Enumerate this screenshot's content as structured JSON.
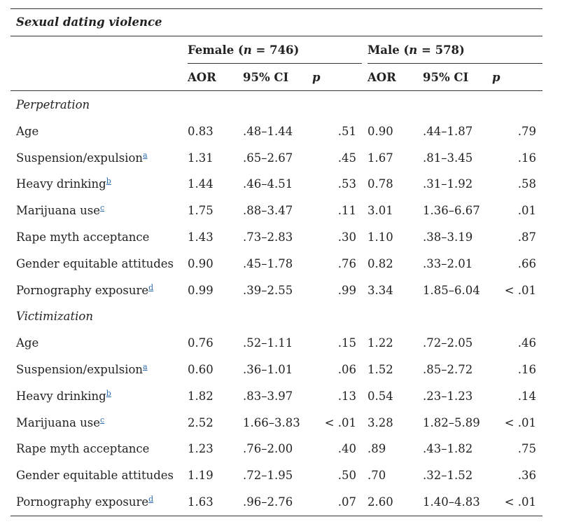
{
  "table": {
    "title": "Sexual dating violence",
    "groups": {
      "female": {
        "label": "Female (",
        "n_symbol": "n",
        "n_text": " = 746)"
      },
      "male": {
        "label": "Male (",
        "n_symbol": "n",
        "n_text": " = 578)"
      }
    },
    "columns": {
      "aor": "AOR",
      "ci": "95% CI",
      "p": "p"
    },
    "sections": [
      {
        "label": "Perpetration",
        "rows": [
          {
            "name": "Age",
            "fn": "",
            "f_aor": "0.83",
            "f_ci": ".48–1.44",
            "f_p": ".51",
            "m_aor": "0.90",
            "m_ci": ".44–1.87",
            "m_p": ".79"
          },
          {
            "name": "Suspension/expulsion",
            "fn": "a",
            "f_aor": "1.31",
            "f_ci": ".65–2.67",
            "f_p": ".45",
            "m_aor": "1.67",
            "m_ci": ".81–3.45",
            "m_p": ".16"
          },
          {
            "name": "Heavy drinking",
            "fn": "b",
            "f_aor": "1.44",
            "f_ci": ".46–4.51",
            "f_p": ".53",
            "m_aor": "0.78",
            "m_ci": ".31–1.92",
            "m_p": ".58"
          },
          {
            "name": "Marijuana use",
            "fn": "c",
            "f_aor": "1.75",
            "f_ci": ".88–3.47",
            "f_p": ".11",
            "m_aor": "3.01",
            "m_ci": "1.36–6.67",
            "m_p": ".01"
          },
          {
            "name": "Rape myth acceptance",
            "fn": "",
            "f_aor": "1.43",
            "f_ci": ".73–2.83",
            "f_p": ".30",
            "m_aor": "1.10",
            "m_ci": ".38–3.19",
            "m_p": ".87"
          },
          {
            "name": "Gender equitable attitudes",
            "fn": "",
            "f_aor": "0.90",
            "f_ci": ".45–1.78",
            "f_p": ".76",
            "m_aor": "0.82",
            "m_ci": ".33–2.01",
            "m_p": ".66"
          },
          {
            "name": "Pornography exposure",
            "fn": "d",
            "f_aor": "0.99",
            "f_ci": ".39–2.55",
            "f_p": ".99",
            "m_aor": "3.34",
            "m_ci": "1.85–6.04",
            "m_p": "< .01"
          }
        ]
      },
      {
        "label": "Victimization",
        "rows": [
          {
            "name": "Age",
            "fn": "",
            "f_aor": "0.76",
            "f_ci": ".52–1.11",
            "f_p": ".15",
            "m_aor": "1.22",
            "m_ci": ".72–2.05",
            "m_p": ".46"
          },
          {
            "name": "Suspension/expulsion",
            "fn": "a",
            "f_aor": "0.60",
            "f_ci": ".36–1.01",
            "f_p": ".06",
            "m_aor": "1.52",
            "m_ci": ".85–2.72",
            "m_p": ".16"
          },
          {
            "name": "Heavy drinking",
            "fn": "b",
            "f_aor": "1.82",
            "f_ci": ".83–3.97",
            "f_p": ".13",
            "m_aor": "0.54",
            "m_ci": ".23–1.23",
            "m_p": ".14"
          },
          {
            "name": "Marijuana use",
            "fn": "c",
            "f_aor": "2.52",
            "f_ci": "1.66–3.83",
            "f_p": "< .01",
            "m_aor": "3.28",
            "m_ci": "1.82–5.89",
            "m_p": "< .01"
          },
          {
            "name": "Rape myth acceptance",
            "fn": "",
            "f_aor": "1.23",
            "f_ci": ".76–2.00",
            "f_p": ".40",
            "m_aor": ".89",
            "m_ci": ".43–1.82",
            "m_p": ".75"
          },
          {
            "name": "Gender equitable attitudes",
            "fn": "",
            "f_aor": "1.19",
            "f_ci": ".72–1.95",
            "f_p": ".50",
            "m_aor": ".70",
            "m_ci": ".32–1.52",
            "m_p": ".36"
          },
          {
            "name": "Pornography exposure",
            "fn": "d",
            "f_aor": "1.63",
            "f_ci": ".96–2.76",
            "f_p": ".07",
            "m_aor": "2.60",
            "m_ci": "1.40–4.83",
            "m_p": "< .01"
          }
        ]
      }
    ]
  }
}
